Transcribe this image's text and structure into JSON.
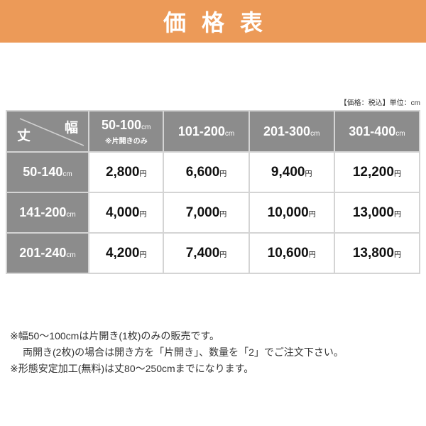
{
  "banner": {
    "title": "価格表"
  },
  "unit_note": "【価格：税込】単位：cm",
  "table": {
    "corner": {
      "width_label": "幅",
      "height_label": "丈"
    },
    "unit": "cm",
    "currency": "円",
    "columns": [
      {
        "range": "50-100",
        "note": "※片開きのみ"
      },
      {
        "range": "101-200"
      },
      {
        "range": "201-300"
      },
      {
        "range": "301-400"
      }
    ],
    "rows": [
      {
        "range": "50-140",
        "prices": [
          "2,800",
          "6,600",
          "9,400",
          "12,200"
        ]
      },
      {
        "range": "141-200",
        "prices": [
          "4,000",
          "7,000",
          "10,000",
          "13,000"
        ]
      },
      {
        "range": "201-240",
        "prices": [
          "4,200",
          "7,400",
          "10,600",
          "13,800"
        ]
      }
    ]
  },
  "notes": [
    "※幅50〜100cmは片開き(1枚)のみの販売です。",
    "両開き(2枚)の場合は開き方を「片開き」、数量を「2」でご注文下さい。",
    "※形態安定加工(無料)は丈80〜250cmまでになります。"
  ],
  "colors": {
    "banner": "#ec9a58",
    "header": "#8c8c8c",
    "border": "#d4d4d4"
  }
}
